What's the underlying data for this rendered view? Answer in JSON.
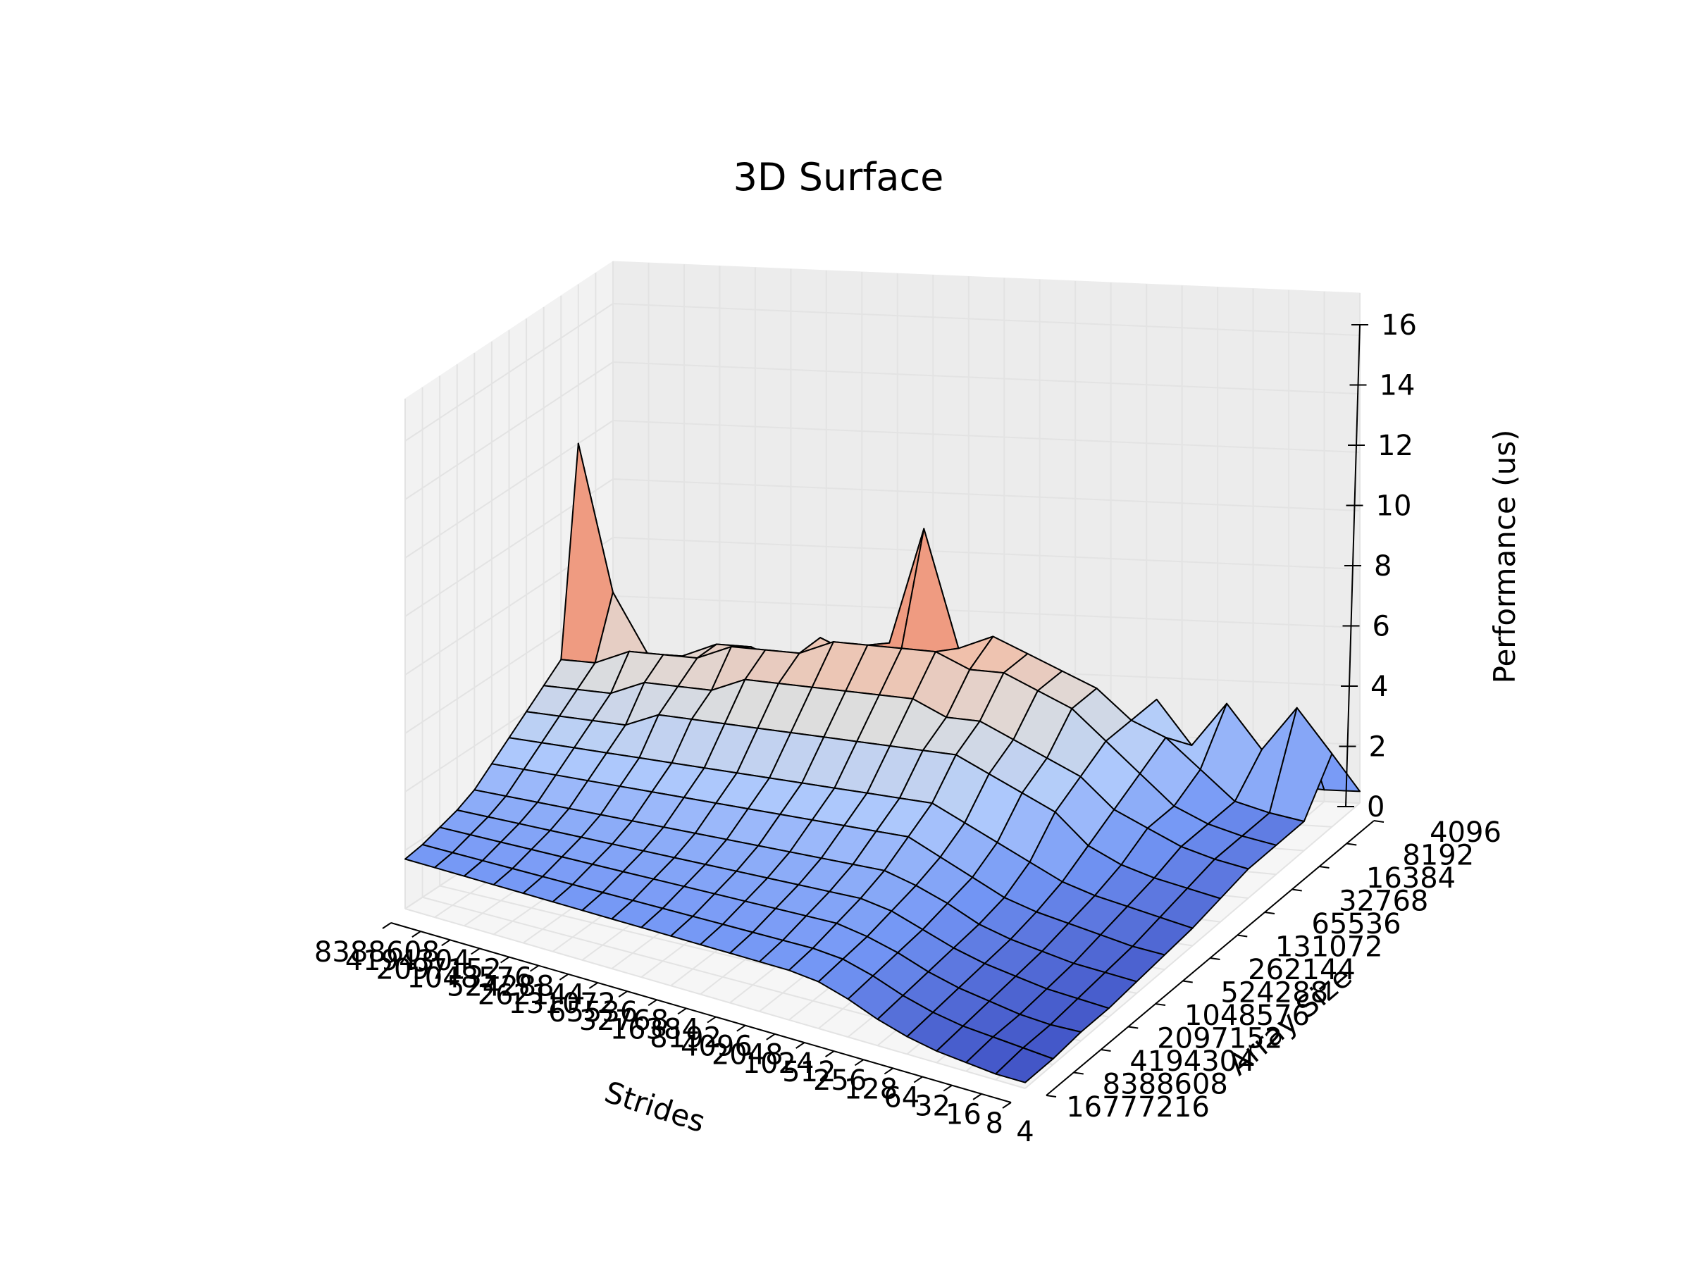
{
  "chart_data": {
    "type": "surface",
    "title": "3D Surface",
    "xlabel": "Strides",
    "ylabel": "Array Size",
    "zlabel": "Performance (us)",
    "zlim": [
      0,
      16
    ],
    "z_ticks": [
      "0",
      "2",
      "4",
      "6",
      "8",
      "10",
      "12",
      "14",
      "16"
    ],
    "x_ticks": [
      "8388608",
      "4194304",
      "2097152",
      "1048576",
      "524288",
      "262144",
      "131072",
      "65536",
      "32768",
      "16384",
      "8192",
      "4096",
      "2048",
      "1024",
      "512",
      "256",
      "128",
      "64",
      "32",
      "16",
      "8",
      "4"
    ],
    "y_ticks": [
      "4096",
      "8192",
      "16384",
      "32768",
      "65536",
      "131072",
      "262144",
      "524288",
      "1048576",
      "2097152",
      "4194304",
      "8388608",
      "16777216"
    ],
    "colormap": [
      "#3b4cc0",
      "#7396f5",
      "#b0cbfc",
      "#dddddd",
      "#f6b69a",
      "#e26952",
      "#b40426"
    ],
    "grid": true,
    "surface_rows": [
      [
        1.0,
        1.0,
        0.9,
        0.9,
        0.9,
        0.9,
        0.9,
        0.8,
        0.8,
        0.8,
        0.8,
        0.7,
        0.7,
        0.7,
        0.6,
        0.6,
        0.6,
        0.5,
        0.5,
        0.5,
        0.4,
        0.4
      ],
      [
        4.0,
        2.5,
        4.0,
        2.5,
        4.0,
        2.5,
        4.0,
        2.5,
        4.0,
        2.5,
        4.0,
        2.5,
        4.0,
        2.5,
        4.0,
        2.5,
        4.0,
        2.5,
        4.0,
        2.5,
        4.0,
        2.5
      ],
      [
        12.0,
        7.0,
        5.0,
        5.0,
        5.5,
        5.5,
        5.0,
        6.0,
        5.5,
        6.0,
        10.0,
        6.0,
        6.5,
        6.0,
        5.5,
        5.0,
        4.0,
        3.5,
        2.5,
        1.5,
        1.2,
        1.0
      ],
      [
        5.0,
        5.0,
        5.5,
        5.5,
        5.5,
        6.0,
        6.0,
        6.0,
        6.5,
        6.5,
        6.5,
        6.5,
        6.0,
        6.0,
        5.5,
        5.0,
        4.0,
        3.0,
        2.0,
        1.5,
        1.2,
        1.0
      ],
      [
        4.5,
        4.5,
        4.5,
        5.0,
        5.0,
        5.0,
        5.5,
        5.5,
        5.5,
        5.5,
        5.5,
        5.5,
        5.0,
        5.0,
        4.5,
        4.0,
        3.5,
        2.5,
        2.0,
        1.5,
        1.2,
        1.0
      ],
      [
        4.0,
        4.0,
        4.0,
        4.0,
        4.5,
        4.5,
        4.5,
        4.5,
        4.5,
        4.5,
        4.5,
        4.5,
        4.5,
        4.5,
        4.0,
        3.5,
        3.0,
        2.0,
        1.5,
        1.2,
        1.0,
        0.8
      ],
      [
        3.5,
        3.5,
        3.5,
        3.5,
        3.5,
        3.5,
        3.5,
        3.5,
        3.5,
        3.5,
        3.5,
        3.5,
        3.5,
        3.5,
        3.0,
        2.5,
        2.0,
        1.5,
        1.2,
        1.0,
        0.8,
        0.6
      ],
      [
        3.0,
        3.0,
        3.0,
        3.0,
        3.0,
        3.0,
        3.0,
        3.0,
        3.0,
        3.0,
        3.0,
        3.0,
        3.0,
        3.0,
        2.5,
        2.0,
        1.5,
        1.2,
        1.0,
        0.8,
        0.6,
        0.5
      ],
      [
        2.5,
        2.5,
        2.5,
        2.5,
        2.5,
        2.5,
        2.5,
        2.5,
        2.5,
        2.5,
        2.5,
        2.5,
        2.5,
        2.5,
        2.2,
        1.8,
        1.3,
        1.0,
        0.8,
        0.6,
        0.5,
        0.4
      ],
      [
        2.2,
        2.2,
        2.2,
        2.2,
        2.2,
        2.2,
        2.2,
        2.2,
        2.2,
        2.2,
        2.2,
        2.2,
        2.2,
        2.2,
        2.0,
        1.6,
        1.2,
        0.9,
        0.7,
        0.5,
        0.4,
        0.3
      ],
      [
        2.0,
        2.0,
        2.0,
        2.0,
        2.0,
        2.0,
        2.0,
        2.0,
        2.0,
        2.0,
        2.0,
        2.0,
        2.0,
        2.0,
        1.8,
        1.5,
        1.1,
        0.8,
        0.6,
        0.4,
        0.3,
        0.3
      ],
      [
        1.8,
        1.8,
        1.8,
        1.8,
        1.8,
        1.8,
        1.8,
        1.8,
        1.8,
        1.8,
        1.8,
        1.8,
        1.8,
        1.8,
        1.7,
        1.4,
        1.0,
        0.7,
        0.5,
        0.4,
        0.3,
        0.2
      ],
      [
        1.7,
        1.7,
        1.7,
        1.7,
        1.7,
        1.7,
        1.7,
        1.7,
        1.7,
        1.7,
        1.7,
        1.7,
        1.7,
        1.7,
        1.6,
        1.3,
        0.9,
        0.6,
        0.4,
        0.3,
        0.2,
        0.2
      ]
    ]
  }
}
